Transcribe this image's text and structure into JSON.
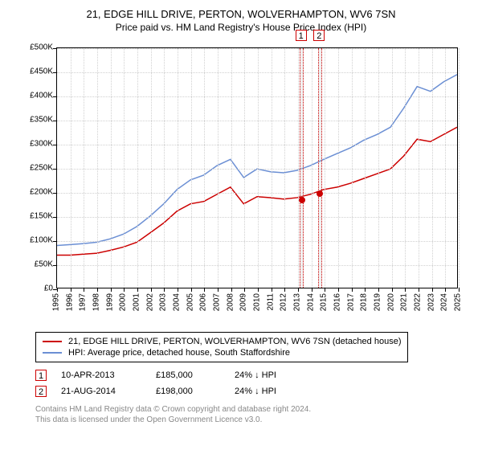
{
  "title": {
    "line1": "21, EDGE HILL DRIVE, PERTON, WOLVERHAMPTON, WV6 7SN",
    "line2": "Price paid vs. HM Land Registry's House Price Index (HPI)"
  },
  "chart": {
    "type": "line",
    "background_color": "#ffffff",
    "grid_color": "#d0d0d0",
    "axis_color": "#000000",
    "label_fontsize": 10,
    "title_fontsize": 13,
    "xlim": [
      1995,
      2025
    ],
    "ylim": [
      0,
      500000
    ],
    "xtick_step": 1,
    "ytick_step": 50000,
    "xtick_labels": [
      "1995",
      "1996",
      "1997",
      "1998",
      "1999",
      "2000",
      "2001",
      "2002",
      "2003",
      "2004",
      "2005",
      "2006",
      "2007",
      "2008",
      "2009",
      "2010",
      "2011",
      "2012",
      "2013",
      "2014",
      "2015",
      "2016",
      "2017",
      "2018",
      "2019",
      "2020",
      "2021",
      "2022",
      "2023",
      "2024",
      "2025"
    ],
    "ytick_labels": [
      "£0",
      "£50K",
      "£100K",
      "£150K",
      "£200K",
      "£250K",
      "£300K",
      "£350K",
      "£400K",
      "£450K",
      "£500K"
    ],
    "series": [
      {
        "name": "21, EDGE HILL DRIVE, PERTON, WOLVERHAMPTON, WV6 7SN (detached house)",
        "color": "#cc0000",
        "line_width": 1.5,
        "x": [
          1995,
          1996,
          1997,
          1998,
          1999,
          2000,
          2001,
          2002,
          2003,
          2004,
          2005,
          2006,
          2007,
          2008,
          2009,
          2010,
          2011,
          2012,
          2013,
          2014,
          2015,
          2016,
          2017,
          2018,
          2019,
          2020,
          2021,
          2022,
          2023,
          2024,
          2025
        ],
        "y": [
          68000,
          68000,
          70000,
          72000,
          78000,
          85000,
          95000,
          115000,
          135000,
          160000,
          175000,
          180000,
          195000,
          210000,
          175000,
          190000,
          188000,
          185000,
          188000,
          195000,
          205000,
          210000,
          218000,
          228000,
          238000,
          248000,
          275000,
          310000,
          305000,
          320000,
          335000
        ]
      },
      {
        "name": "HPI: Average price, detached house, South Staffordshire",
        "color": "#6b8fd4",
        "line_width": 1.5,
        "x": [
          1995,
          1996,
          1997,
          1998,
          1999,
          2000,
          2001,
          2002,
          2003,
          2004,
          2005,
          2006,
          2007,
          2008,
          2009,
          2010,
          2011,
          2012,
          2013,
          2014,
          2015,
          2016,
          2017,
          2018,
          2019,
          2020,
          2021,
          2022,
          2023,
          2024,
          2025
        ],
        "y": [
          88000,
          90000,
          92000,
          95000,
          102000,
          112000,
          128000,
          150000,
          175000,
          205000,
          225000,
          235000,
          255000,
          268000,
          230000,
          248000,
          242000,
          240000,
          245000,
          255000,
          268000,
          280000,
          292000,
          308000,
          320000,
          335000,
          375000,
          420000,
          410000,
          430000,
          445000
        ]
      }
    ],
    "event_markers": [
      {
        "label": "1",
        "x": 2013.28,
        "date": "10-APR-2013",
        "price": "£185,000",
        "diff_text": "24% ↓ HPI",
        "dot_y": 185000,
        "dot_color": "#cc0000",
        "band_width_years": 0.3
      },
      {
        "label": "2",
        "x": 2014.64,
        "date": "21-AUG-2014",
        "price": "£198,000",
        "diff_text": "24% ↓ HPI",
        "dot_y": 198000,
        "dot_color": "#cc0000",
        "band_width_years": 0.3
      }
    ]
  },
  "legend": {
    "border_color": "#000000"
  },
  "footer": {
    "line1": "Contains HM Land Registry data © Crown copyright and database right 2024.",
    "line2": "This data is licensed under the Open Government Licence v3.0."
  }
}
